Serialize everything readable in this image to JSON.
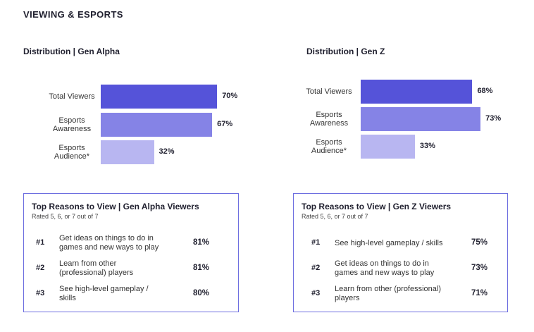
{
  "page_title": "VIEWING & ESPORTS",
  "colors": {
    "total": "#5553d9",
    "awareness": "#8583e6",
    "audience": "#b8b6f1",
    "box_border": "#6d6ee0"
  },
  "chart_data": [
    {
      "type": "bar",
      "orientation": "horizontal",
      "title": "Distribution | Gen Alpha",
      "categories": [
        "Total Viewers",
        "Esports Awareness",
        "Esports Audience*"
      ],
      "category_lines": [
        [
          "Total Viewers"
        ],
        [
          "Esports",
          "Awareness"
        ],
        [
          "Esports",
          "Audience*"
        ]
      ],
      "values": [
        70,
        67,
        32
      ],
      "value_labels": [
        "70%",
        "67%",
        "32%"
      ],
      "unit": "%",
      "xlim": [
        0,
        100
      ]
    },
    {
      "type": "bar",
      "orientation": "horizontal",
      "title": "Distribution | Gen Z",
      "categories": [
        "Total Viewers",
        "Esports Awareness",
        "Esports Audience*"
      ],
      "category_lines": [
        [
          "Total Viewers"
        ],
        [
          "Esports",
          "Awareness"
        ],
        [
          "Esports",
          "Audience*"
        ]
      ],
      "values": [
        68,
        73,
        33
      ],
      "value_labels": [
        "68%",
        "73%",
        "33%"
      ],
      "unit": "%",
      "xlim": [
        0,
        100
      ]
    }
  ],
  "reasons": [
    {
      "title": "Top Reasons to View | Gen Alpha Viewers",
      "subtitle": "Rated 5, 6, or 7 out of 7",
      "rows": [
        {
          "rank": "#1",
          "lines": [
            "Get ideas on things to do in",
            "games and new ways to play"
          ],
          "pct": "81%"
        },
        {
          "rank": "#2",
          "lines": [
            "Learn from other",
            "(professional) players"
          ],
          "pct": "81%"
        },
        {
          "rank": "#3",
          "lines": [
            "See high-level gameplay /",
            "skills"
          ],
          "pct": "80%"
        }
      ]
    },
    {
      "title": "Top Reasons to View | Gen Z Viewers",
      "subtitle": "Rated 5, 6, or 7 out of 7",
      "rows": [
        {
          "rank": "#1",
          "lines": [
            "See high-level gameplay / skills"
          ],
          "pct": "75%"
        },
        {
          "rank": "#2",
          "lines": [
            "Get ideas on things to do in",
            "games and new ways to play"
          ],
          "pct": "73%"
        },
        {
          "rank": "#3",
          "lines": [
            "Learn from other (professional)",
            "players"
          ],
          "pct": "71%"
        }
      ]
    }
  ]
}
